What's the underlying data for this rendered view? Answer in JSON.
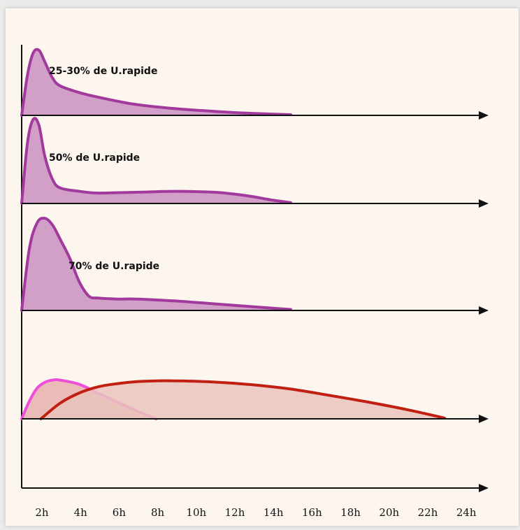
{
  "chart_data": {
    "type": "area",
    "x_ticks": [
      "2h",
      "4h",
      "6h",
      "8h",
      "10h",
      "12h",
      "14h",
      "16h",
      "18h",
      "20h",
      "22h",
      "24h"
    ],
    "xlim": [
      0,
      24
    ],
    "grid": false,
    "legend": "none",
    "panels": [
      {
        "label": "25-30% de U.rapide",
        "color": "#a13a9c",
        "fill": "#c98fc1",
        "x": [
          0,
          0.3,
          0.6,
          0.9,
          1.2,
          1.6,
          2,
          3,
          4,
          5,
          6,
          8,
          10,
          12,
          14
        ],
        "y": [
          0,
          0.6,
          0.93,
          0.97,
          0.8,
          0.56,
          0.44,
          0.34,
          0.27,
          0.21,
          0.16,
          0.1,
          0.06,
          0.03,
          0.01
        ]
      },
      {
        "label": "50% de U.rapide",
        "color": "#a13a9c",
        "fill": "#c98fc1",
        "x": [
          0,
          0.3,
          0.6,
          0.9,
          1.2,
          1.6,
          2,
          3,
          4,
          6,
          8,
          10,
          11,
          12,
          13,
          14
        ],
        "y": [
          0,
          0.7,
          0.97,
          0.9,
          0.55,
          0.28,
          0.18,
          0.14,
          0.12,
          0.13,
          0.14,
          0.13,
          0.11,
          0.08,
          0.04,
          0.01
        ]
      },
      {
        "label": "70% de U.rapide",
        "color": "#a13a9c",
        "fill": "#c98fc1",
        "x": [
          0,
          0.4,
          0.8,
          1.2,
          1.6,
          2,
          2.5,
          3,
          3.5,
          4,
          5,
          6,
          8,
          10,
          12,
          14
        ],
        "y": [
          0,
          0.65,
          0.92,
          0.97,
          0.9,
          0.75,
          0.55,
          0.3,
          0.15,
          0.13,
          0.12,
          0.12,
          0.1,
          0.07,
          0.04,
          0.01
        ]
      },
      {
        "label": "",
        "series": [
          {
            "color": "#ee4fd9",
            "fill": "#e7b1ad",
            "x": [
              0,
              0.4,
              0.8,
              1.2,
              1.6,
              2,
              3,
              4,
              5,
              6,
              7
            ],
            "y": [
              0,
              0.45,
              0.78,
              0.93,
              0.99,
              0.99,
              0.88,
              0.65,
              0.42,
              0.2,
              0
            ]
          },
          {
            "color": "#c11f12",
            "fill": "#e9c4bc",
            "x": [
              1,
              2,
              3,
              4,
              5,
              6,
              7,
              8,
              10,
              12,
              14,
              16,
              18,
              20,
              22
            ],
            "y": [
              0,
              0.4,
              0.66,
              0.82,
              0.9,
              0.95,
              0.97,
              0.97,
              0.94,
              0.87,
              0.76,
              0.6,
              0.43,
              0.24,
              0.02
            ]
          }
        ]
      }
    ]
  }
}
